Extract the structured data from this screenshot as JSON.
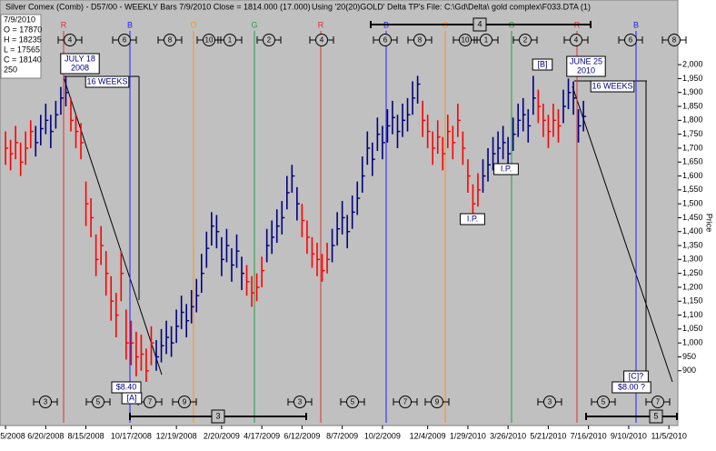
{
  "chart_data": {
    "type": "ohlc",
    "title": "Silver Comex (Comb) - D57/00 - WEEKLY Bars  7/9/2010 Close = 1814.000 (17.000)",
    "subtitle": "Using '20(20)GOLD' Delta TP's   File: C:\\Gd\\Delta\\ gold complex\\F033.DTA (1)",
    "info": [
      "7/9/2010",
      "O = 17870",
      "H = 18235",
      "L = 17565",
      "C = 18140",
      "250"
    ],
    "y_label": "Price",
    "ylim": [
      713,
      2167
    ],
    "yticks": [
      900,
      950,
      {
        "value": 1000,
        "label": "1,000"
      },
      {
        "value": 1050,
        "label": "1,050"
      },
      {
        "value": 1100,
        "label": "1,100"
      },
      {
        "value": 1150,
        "label": "1,150"
      },
      {
        "value": 1200,
        "label": "1,200"
      },
      {
        "value": 1250,
        "label": "1,250"
      },
      {
        "value": 1300,
        "label": "1,300"
      },
      {
        "value": 1350,
        "label": "1,350"
      },
      {
        "value": 1400,
        "label": "1,400"
      },
      {
        "value": 1450,
        "label": "1,450"
      },
      {
        "value": 1500,
        "label": "1,500"
      },
      {
        "value": 1550,
        "label": "1,550"
      },
      {
        "value": 1600,
        "label": "1,600"
      },
      {
        "value": 1650,
        "label": "1,650"
      },
      {
        "value": 1700,
        "label": "1,700"
      },
      {
        "value": 1750,
        "label": "1,750"
      },
      {
        "value": 1800,
        "label": "1,800"
      },
      {
        "value": 1850,
        "label": "1,850"
      },
      {
        "value": 1900,
        "label": "1,900"
      },
      {
        "value": 1950,
        "label": "1,950"
      },
      {
        "value": 2000,
        "label": "2,000"
      }
    ],
    "xlim": [
      -1.1,
      133.6
    ],
    "xticks": [
      {
        "value": 0,
        "label": "5/2008"
      },
      {
        "value": 8,
        "label": "6/20/2008"
      },
      {
        "value": 16,
        "label": "8/15/2008"
      },
      {
        "value": 25,
        "label": "10/17/2008"
      },
      {
        "value": 34,
        "label": "12/19/2008"
      },
      {
        "value": 43,
        "label": "2/20/2009"
      },
      {
        "value": 51,
        "label": "4/17/2009"
      },
      {
        "value": 59,
        "label": "6/12/2009"
      },
      {
        "value": 67,
        "label": "8/7/2009"
      },
      {
        "value": 75,
        "label": "10/2/2009"
      },
      {
        "value": 84,
        "label": "12/4/2009"
      },
      {
        "value": 92,
        "label": "1/29/2010"
      },
      {
        "value": 100,
        "label": "3/26/2010"
      },
      {
        "value": 108,
        "label": "5/21/2010"
      },
      {
        "value": 116,
        "label": "7/16/2010"
      },
      {
        "value": 124,
        "label": "9/10/2010"
      },
      {
        "value": 132,
        "label": "11/5/2010"
      }
    ],
    "segments": [
      {
        "color": "#ff0000",
        "bars": [
          [
            1760,
            1640,
            1700
          ],
          [
            1730,
            1620,
            1680
          ],
          [
            1780,
            1660,
            1720
          ],
          [
            1720,
            1600,
            1650
          ],
          [
            1760,
            1640,
            1700
          ],
          [
            1800,
            1700,
            1760
          ]
        ]
      },
      {
        "color": "#000080",
        "bars": [
          [
            1780,
            1670,
            1720
          ],
          [
            1820,
            1710,
            1770
          ],
          [
            1860,
            1750,
            1800
          ],
          [
            1820,
            1700,
            1760
          ],
          [
            1870,
            1770,
            1820
          ],
          [
            1920,
            1820,
            1880
          ],
          [
            1960,
            1850,
            1900
          ]
        ]
      },
      {
        "color": "#ff0000",
        "bars": [
          [
            1880,
            1760,
            1800
          ],
          [
            1820,
            1700,
            1760
          ],
          [
            1790,
            1660,
            1720
          ],
          [
            1580,
            1420,
            1500
          ],
          [
            1520,
            1380,
            1450
          ],
          [
            1390,
            1240,
            1300
          ],
          [
            1420,
            1280,
            1350
          ],
          [
            1330,
            1170,
            1250
          ],
          [
            1240,
            1080,
            1150
          ],
          [
            1180,
            1020,
            1100
          ],
          [
            1330,
            1150,
            1250
          ],
          [
            1120,
            940,
            1000
          ],
          [
            1080,
            920,
            1000
          ],
          [
            1040,
            880,
            950
          ],
          [
            1030,
            900,
            960
          ],
          [
            980,
            860,
            900
          ],
          [
            1060,
            920,
            1000
          ]
        ]
      },
      {
        "color": "#000080",
        "bars": [
          [
            1010,
            900,
            950
          ],
          [
            1050,
            930,
            990
          ],
          [
            1080,
            960,
            1020
          ],
          [
            1060,
            950,
            1000
          ],
          [
            1120,
            1000,
            1060
          ],
          [
            1170,
            1050,
            1110
          ],
          [
            1140,
            1020,
            1080
          ],
          [
            1190,
            1070,
            1130
          ],
          [
            1230,
            1110,
            1170
          ],
          [
            1320,
            1180,
            1250
          ],
          [
            1400,
            1270,
            1340
          ],
          [
            1470,
            1350,
            1420
          ],
          [
            1460,
            1340,
            1400
          ],
          [
            1380,
            1240,
            1300
          ],
          [
            1410,
            1290,
            1350
          ],
          [
            1340,
            1220,
            1280
          ],
          [
            1390,
            1270,
            1330
          ],
          [
            1310,
            1190,
            1250
          ]
        ]
      },
      {
        "color": "#ff0000",
        "bars": [
          [
            1280,
            1170,
            1220
          ],
          [
            1240,
            1130,
            1180
          ],
          [
            1250,
            1150,
            1200
          ],
          [
            1310,
            1200,
            1260
          ]
        ]
      },
      {
        "color": "#000080",
        "bars": [
          [
            1410,
            1290,
            1350
          ],
          [
            1440,
            1320,
            1380
          ],
          [
            1480,
            1360,
            1420
          ],
          [
            1510,
            1390,
            1450
          ],
          [
            1600,
            1480,
            1540
          ],
          [
            1640,
            1540,
            1600
          ],
          [
            1560,
            1440,
            1500
          ]
        ]
      },
      {
        "color": "#ff0000",
        "bars": [
          [
            1500,
            1380,
            1440
          ],
          [
            1440,
            1320,
            1380
          ],
          [
            1380,
            1270,
            1320
          ],
          [
            1360,
            1240,
            1300
          ],
          [
            1320,
            1220,
            1260
          ],
          [
            1360,
            1250,
            1300
          ]
        ]
      },
      {
        "color": "#000080",
        "bars": [
          [
            1410,
            1290,
            1350
          ],
          [
            1470,
            1350,
            1410
          ],
          [
            1510,
            1390,
            1450
          ],
          [
            1460,
            1340,
            1400
          ],
          [
            1530,
            1410,
            1470
          ],
          [
            1580,
            1460,
            1520
          ],
          [
            1670,
            1540,
            1600
          ],
          [
            1760,
            1640,
            1700
          ],
          [
            1720,
            1600,
            1660
          ],
          [
            1810,
            1690,
            1750
          ],
          [
            1780,
            1660,
            1720
          ],
          [
            1840,
            1720,
            1780
          ],
          [
            1870,
            1750,
            1810
          ],
          [
            1820,
            1700,
            1760
          ],
          [
            1860,
            1740,
            1800
          ],
          [
            1880,
            1760,
            1820
          ],
          [
            1940,
            1820,
            1880
          ],
          [
            1960,
            1860,
            1930
          ]
        ]
      },
      {
        "color": "#ff0000",
        "bars": [
          [
            1870,
            1740,
            1800
          ],
          [
            1820,
            1700,
            1760
          ],
          [
            1760,
            1640,
            1700
          ],
          [
            1800,
            1680,
            1740
          ],
          [
            1740,
            1620,
            1680
          ],
          [
            1820,
            1700,
            1760
          ],
          [
            1780,
            1660,
            1720
          ],
          [
            1860,
            1740,
            1800
          ],
          [
            1760,
            1640,
            1700
          ],
          [
            1660,
            1540,
            1600
          ],
          [
            1570,
            1460,
            1500
          ],
          [
            1610,
            1490,
            1550
          ]
        ]
      },
      {
        "color": "#000080",
        "bars": [
          [
            1660,
            1540,
            1600
          ],
          [
            1700,
            1580,
            1640
          ],
          [
            1740,
            1620,
            1680
          ],
          [
            1760,
            1640,
            1700
          ],
          [
            1780,
            1660,
            1720
          ],
          [
            1740,
            1620,
            1680
          ],
          [
            1810,
            1690,
            1750
          ],
          [
            1860,
            1740,
            1800
          ],
          [
            1880,
            1760,
            1820
          ],
          [
            1840,
            1720,
            1780
          ],
          [
            1960,
            1820,
            1880
          ]
        ]
      },
      {
        "color": "#ff0000",
        "bars": [
          [
            1910,
            1790,
            1850
          ],
          [
            1860,
            1740,
            1800
          ],
          [
            1820,
            1700,
            1760
          ],
          [
            1860,
            1740,
            1800
          ],
          [
            1840,
            1720,
            1780
          ]
        ]
      },
      {
        "color": "#000080",
        "bars": [
          [
            1910,
            1790,
            1850
          ],
          [
            1950,
            1840,
            1900
          ],
          [
            1940,
            1820,
            1880
          ],
          [
            1840,
            1720,
            1780
          ],
          [
            1870,
            1760,
            1814
          ]
        ]
      }
    ],
    "cycle_letters": [
      "R",
      "B",
      "O",
      "G",
      "R",
      "B",
      "O",
      "G",
      "R",
      "B"
    ],
    "cycle_colors": [
      "#e03030",
      "#2020ff",
      "#ff9020",
      "#20a040",
      "#e03030",
      "#2020ff",
      "#ff9020",
      "#20a040",
      "#e03030",
      "#2020ff"
    ],
    "top_markers": [
      "4",
      "6",
      "8",
      "10",
      "1",
      "2",
      "4",
      "6",
      "8",
      "10",
      "1",
      "2",
      "4",
      "6",
      "8"
    ],
    "bottom_markers": [
      "3",
      "5",
      "7",
      "9",
      "3",
      "5",
      "7",
      "9",
      "3",
      "5",
      "7"
    ],
    "brackets": [
      "4",
      "3",
      "5"
    ],
    "annotations": [
      [
        "JULY 18",
        "2008"
      ],
      [
        "16 WEEKS"
      ],
      [
        "$8.40"
      ],
      [
        "[A]"
      ],
      [
        "I.P."
      ],
      [
        "I.P."
      ],
      [
        "[B]"
      ],
      [
        "JUNE 25",
        "2010"
      ],
      [
        "16 WEEKS"
      ],
      [
        "[C]?"
      ],
      [
        "$8.00 ?"
      ]
    ]
  }
}
